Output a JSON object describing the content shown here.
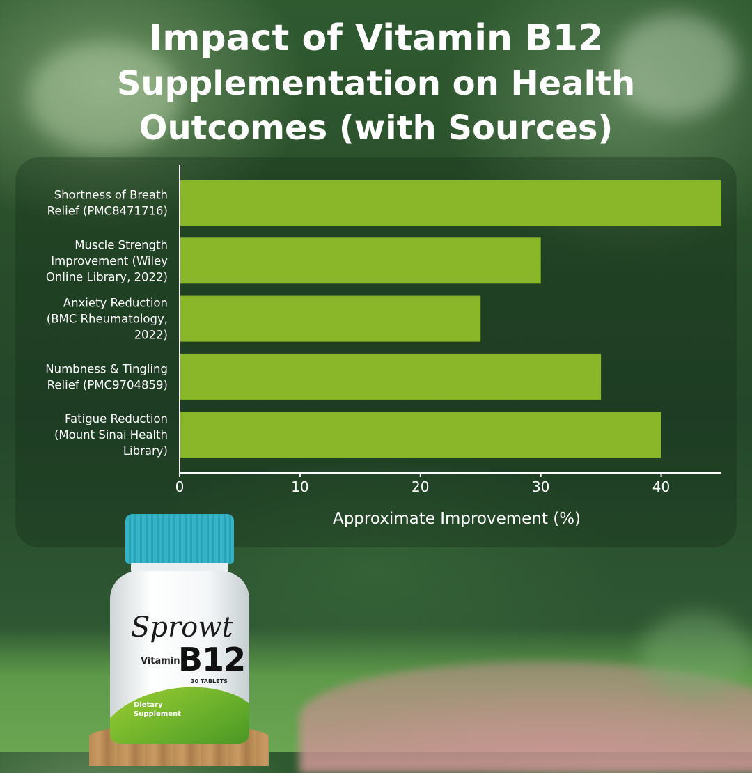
{
  "title_line1": "Impact of Vitamin B12",
  "title_line2": "Supplementation on Health",
  "title_line3": "Outcomes (with Sources)",
  "chart_data": {
    "type": "bar",
    "orientation": "horizontal",
    "categories": [
      [
        "Shortness of Breath",
        "Relief (PMC8471716)"
      ],
      [
        "Muscle Strength",
        "Improvement (Wiley",
        "Online Library, 2022)"
      ],
      [
        "Anxiety Reduction",
        "(BMC Rheumatology,",
        "2022)"
      ],
      [
        "Numbness & Tingling",
        "Relief (PMC9704859)"
      ],
      [
        "Fatigue Reduction",
        "(Mount Sinai Health",
        "Library)"
      ]
    ],
    "values": [
      45,
      30,
      25,
      35,
      40
    ],
    "xlabel": "Approximate Improvement (%)",
    "xticks": [
      0,
      10,
      20,
      30,
      40
    ],
    "xlim": [
      0,
      45
    ],
    "bar_color": "#8ab62a",
    "grid": false
  },
  "product": {
    "brand": "Sprowt",
    "vitamin_label": "Vitamin",
    "name": "B12",
    "count": "30 TABLETS",
    "type_line1": "Dietary",
    "type_line2": "Supplement",
    "cap_color": "#35b4c7"
  }
}
